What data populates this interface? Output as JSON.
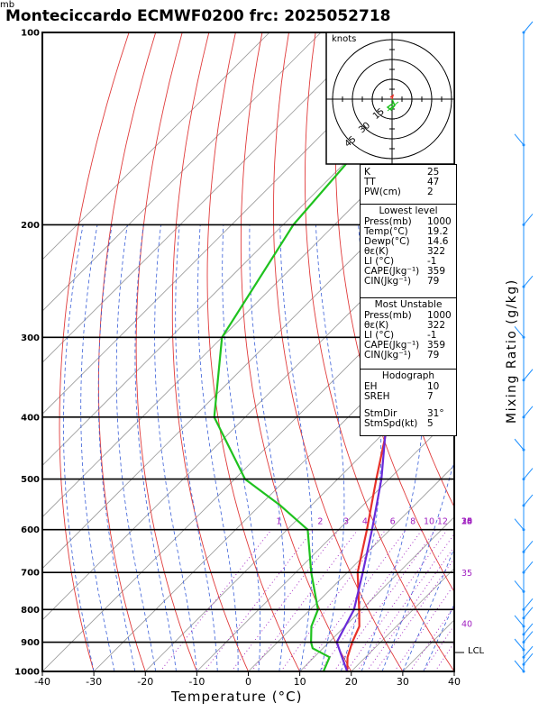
{
  "title": "Monteciccardo ECMWF0200  frc: 2025052718",
  "pressure_unit": "mb",
  "xlabel": "Temperature (°C)",
  "mixing_label": "Mixing Ratio  (g/kg)",
  "lcl_label": "LCL",
  "hodograph": {
    "unit_label": "knots",
    "ring_labels": [
      "15",
      "30",
      "45"
    ]
  },
  "indices": [
    {
      "key": "K",
      "value": "25"
    },
    {
      "key": "TT",
      "value": "47"
    },
    {
      "key": "PW(cm)",
      "value": "2"
    }
  ],
  "lowest_level": {
    "header": "Lowest level",
    "rows": [
      {
        "key": "Press(mb)",
        "value": "1000"
      },
      {
        "key": "Temp(°C)",
        "value": "19.2"
      },
      {
        "key": "Dewp(°C)",
        "value": "14.6"
      },
      {
        "key": "θε(K)",
        "value": "322"
      },
      {
        "key": "LI (°C)",
        "value": "-1"
      },
      {
        "key": "CAPE(Jkg⁻¹)",
        "value": "359"
      },
      {
        "key": "CIN(Jkg⁻¹)",
        "value": "79"
      }
    ]
  },
  "most_unstable": {
    "header": "Most Unstable",
    "rows": [
      {
        "key": "Press(mb)",
        "value": "1000"
      },
      {
        "key": "θε(K)",
        "value": "322"
      },
      {
        "key": "LI (°C)",
        "value": "-1"
      },
      {
        "key": "CAPE(Jkg⁻¹)",
        "value": "359"
      },
      {
        "key": "CIN(Jkg⁻¹)",
        "value": "79"
      }
    ]
  },
  "hodograph_panel": {
    "header": "Hodograph",
    "rows": [
      {
        "key": "EH",
        "value": "10"
      },
      {
        "key": "SREH",
        "value": "7"
      },
      {
        "key": "StmDir",
        "value": "31°"
      },
      {
        "key": "StmSpd(kt)",
        "value": "5"
      }
    ]
  },
  "colors": {
    "temperature": "#e8312a",
    "dewpoint": "#1fc21f",
    "parcel": "#6a2bd9",
    "dry_adiabat": "#e03a3a",
    "moist_adiabat": "#3a5fd8",
    "isotherm": "#9a9a9a",
    "mixing_ratio": "#a020c0",
    "wind": "#1e90ff"
  },
  "chart_data": {
    "type": "line",
    "subtype": "skew-t log-p",
    "xlim": [
      -40,
      40
    ],
    "ylim": [
      1000,
      100
    ],
    "y_scale": "log",
    "x_ticks": [
      -40,
      -30,
      -20,
      -10,
      0,
      10,
      20,
      30,
      40
    ],
    "pressure_ticks": [
      1000,
      900,
      800,
      700,
      600,
      500,
      400,
      300,
      200,
      100
    ],
    "mixing_ratio_labels": [
      {
        "value": "1",
        "p": 580
      },
      {
        "value": "2",
        "p": 580
      },
      {
        "value": "3",
        "p": 580
      },
      {
        "value": "4",
        "p": 580
      },
      {
        "value": "6",
        "p": 580
      },
      {
        "value": "8",
        "p": 580
      },
      {
        "value": "10",
        "p": 580
      },
      {
        "value": "12",
        "p": 580
      },
      {
        "value": "14",
        "p": 580
      },
      {
        "value": "16",
        "p": 580
      },
      {
        "value": "18",
        "p": 580
      },
      {
        "value": "20",
        "p": 580
      },
      {
        "value": "25",
        "p": 580
      },
      {
        "value": "30",
        "p": 580
      },
      {
        "value": "35",
        "p": 700
      },
      {
        "value": "40",
        "p": 840
      }
    ],
    "series": [
      {
        "name": "Temperature",
        "points": [
          [
            1000,
            19.2
          ],
          [
            950,
            16.5
          ],
          [
            900,
            14.5
          ],
          [
            850,
            12.8
          ],
          [
            800,
            9.5
          ],
          [
            700,
            2.0
          ],
          [
            600,
            -4.5
          ],
          [
            500,
            -12.5
          ],
          [
            400,
            -22.0
          ],
          [
            300,
            -38.0
          ],
          [
            250,
            -50.0
          ],
          [
            200,
            -47.0
          ],
          [
            150,
            -44.0
          ],
          [
            100,
            -41.0
          ]
        ]
      },
      {
        "name": "Dewpoint",
        "points": [
          [
            1000,
            14.6
          ],
          [
            950,
            13.0
          ],
          [
            920,
            8.0
          ],
          [
            900,
            6.5
          ],
          [
            850,
            3.5
          ],
          [
            800,
            1.5
          ],
          [
            700,
            -7.0
          ],
          [
            600,
            -16.0
          ],
          [
            550,
            -26.0
          ],
          [
            500,
            -38.0
          ],
          [
            400,
            -56.0
          ],
          [
            300,
            -70.0
          ],
          [
            200,
            -78.0
          ],
          [
            100,
            -83.0
          ]
        ]
      },
      {
        "name": "Parcel",
        "points": [
          [
            1000,
            19.2
          ],
          [
            900,
            11.5
          ],
          [
            800,
            8.5
          ],
          [
            700,
            3.0
          ],
          [
            600,
            -3.5
          ],
          [
            500,
            -11.5
          ],
          [
            400,
            -22.5
          ],
          [
            300,
            -38.0
          ],
          [
            200,
            -58.0
          ],
          [
            100,
            -86.0
          ]
        ]
      }
    ],
    "wind_profile_p": [
      1000,
      975,
      950,
      925,
      900,
      875,
      850,
      825,
      800,
      750,
      700,
      650,
      600,
      550,
      500,
      450,
      400,
      350,
      300,
      250,
      200,
      150,
      100
    ]
  }
}
